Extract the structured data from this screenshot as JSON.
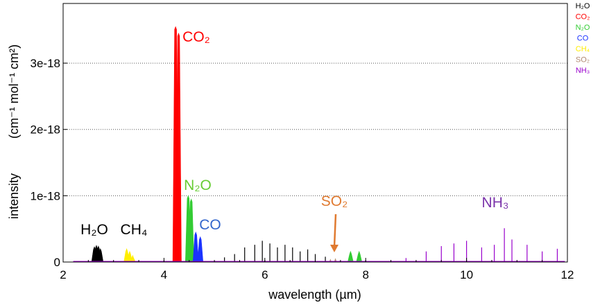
{
  "chart_data": {
    "type": "area",
    "title": "",
    "xlabel": "wavelength (µm)",
    "ylabel_prefix": "intensity",
    "ylabel_units": "(cm⁻¹ mol⁻¹ cm²)",
    "xlim": [
      2,
      12
    ],
    "ylim": [
      0,
      3.9e-18
    ],
    "x_ticks": [
      2,
      4,
      6,
      8,
      10,
      12
    ],
    "x_tick_labels": [
      "2",
      "4",
      "6",
      "8",
      "10",
      "12"
    ],
    "y_ticks": [
      0,
      1e-18,
      2e-18,
      3e-18
    ],
    "y_tick_labels": [
      "0",
      "1e-18",
      "2e-18",
      "3e-18"
    ],
    "grid": "horizontal dotted",
    "legend_position": "top-right",
    "legend": [
      {
        "label": "H₂O",
        "color": "#000000"
      },
      {
        "label": "CO₂",
        "color": "#ff0000"
      },
      {
        "label": "N₂O",
        "color": "#33cc33"
      },
      {
        "label": "CO",
        "color": "#1a33ff"
      },
      {
        "label": "CH₄",
        "color": "#ffee00"
      },
      {
        "label": "SO₂",
        "color": "#b08870"
      },
      {
        "label": "NH₃",
        "color": "#9900cc"
      }
    ],
    "annotations": [
      {
        "text": "H₂O",
        "color": "#000000"
      },
      {
        "text": "CH₄",
        "color": "#000000"
      },
      {
        "text": "CO₂",
        "color": "#ff0000"
      },
      {
        "text": "N₂O",
        "color": "#66cc33"
      },
      {
        "text": "CO",
        "color": "#3366cc"
      },
      {
        "text": "SO₂",
        "color": "#e07a30"
      },
      {
        "text": "NH₃",
        "color": "#7a33aa"
      }
    ],
    "series": [
      {
        "name": "H₂O",
        "color": "#000000",
        "kind": "band",
        "peaks": [
          [
            2.62,
            2.3e-19
          ],
          [
            2.66,
            2.5e-19
          ],
          [
            2.7,
            2.4e-19
          ],
          [
            2.74,
            2e-19
          ]
        ]
      },
      {
        "name": "CH₄",
        "color": "#ffee00",
        "kind": "band",
        "peaks": [
          [
            3.26,
            2e-19
          ],
          [
            3.32,
            1.6e-19
          ],
          [
            3.38,
            1e-19
          ]
        ]
      },
      {
        "name": "CO₂",
        "color": "#ff0000",
        "kind": "band",
        "peaks": [
          [
            4.23,
            3.55e-18
          ],
          [
            4.29,
            3.45e-18
          ]
        ]
      },
      {
        "name": "N₂O",
        "color": "#33cc33",
        "kind": "band",
        "peaks": [
          [
            4.48,
            1e-18
          ],
          [
            4.54,
            9.5e-19
          ],
          [
            7.7,
            1.6e-19
          ],
          [
            7.87,
            1.6e-19
          ]
        ]
      },
      {
        "name": "CO",
        "color": "#1a33ff",
        "kind": "band",
        "peaks": [
          [
            4.63,
            4.5e-19
          ],
          [
            4.72,
            3.8e-19
          ]
        ]
      },
      {
        "name": "SO₂",
        "color": "#b08870",
        "kind": "band",
        "peaks": [
          [
            7.3,
            4e-20
          ],
          [
            7.4,
            5e-20
          ]
        ]
      },
      {
        "name": "H₂O ν2",
        "color": "#000000",
        "kind": "lines",
        "peaks": [
          [
            5.2,
            7e-20
          ],
          [
            5.4,
            1.2e-19
          ],
          [
            5.6,
            2.2e-19
          ],
          [
            5.8,
            2.6e-19
          ],
          [
            5.95,
            3.2e-19
          ],
          [
            6.1,
            2.8e-19
          ],
          [
            6.25,
            2.2e-19
          ],
          [
            6.4,
            2.6e-19
          ],
          [
            6.55,
            2.2e-19
          ],
          [
            6.7,
            1.6e-19
          ],
          [
            6.85,
            1.9e-19
          ],
          [
            7.0,
            1.2e-19
          ],
          [
            7.2,
            8e-20
          ]
        ]
      },
      {
        "name": "NH₃",
        "color": "#9900cc",
        "kind": "lines",
        "peaks": [
          [
            8.8,
            6e-20
          ],
          [
            9.2,
            1.6e-19
          ],
          [
            9.5,
            2.4e-19
          ],
          [
            9.75,
            2.8e-19
          ],
          [
            10.0,
            3.2e-19
          ],
          [
            10.3,
            2.2e-19
          ],
          [
            10.55,
            2.6e-19
          ],
          [
            10.75,
            5.1e-19
          ],
          [
            10.9,
            3.4e-19
          ],
          [
            11.2,
            2.6e-19
          ],
          [
            11.5,
            1.6e-19
          ],
          [
            11.8,
            2e-19
          ]
        ]
      }
    ]
  }
}
